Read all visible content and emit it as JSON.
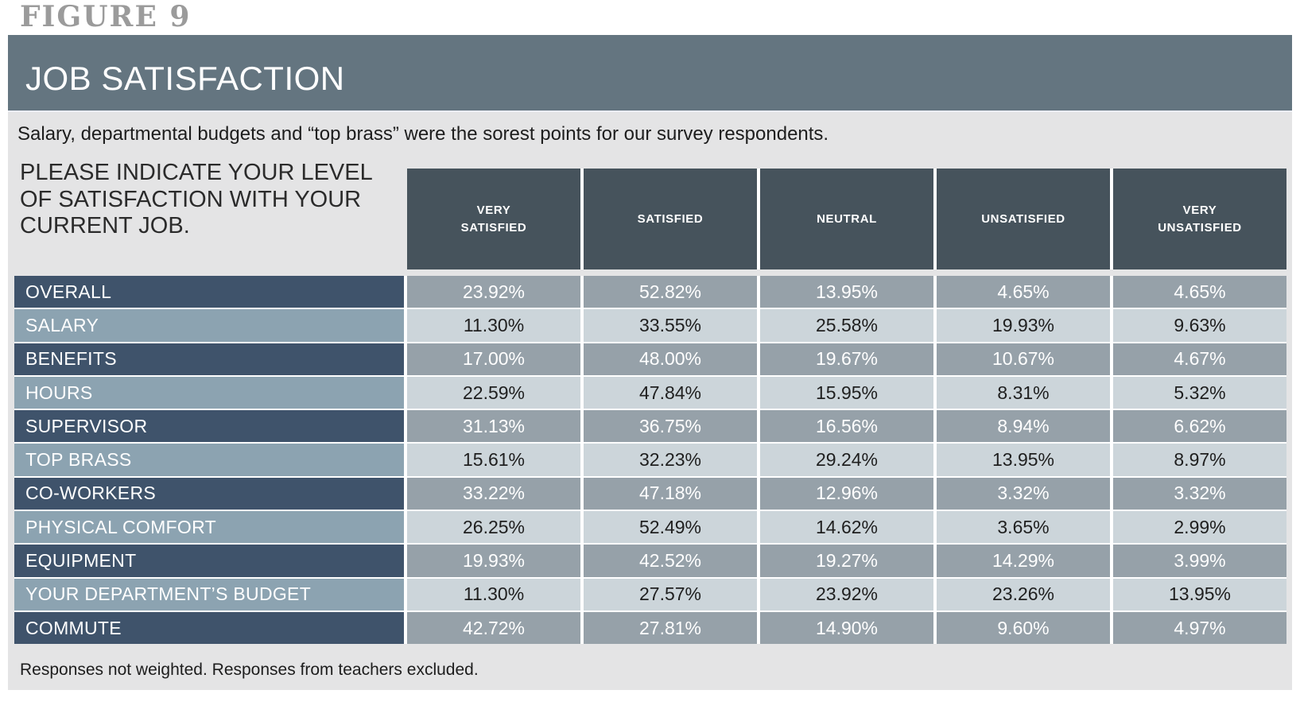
{
  "figure_label": "FIGURE 9",
  "title": "JOB SATISFACTION",
  "subtitle": "Salary, departmental budgets and “top brass” were the sorest points for our survey respondents.",
  "question_lines": [
    "PLEASE INDICATE YOUR LEVEL",
    "OF SATISFACTION WITH YOUR",
    "CURRENT JOB."
  ],
  "footnote": "Responses not weighted. Responses from teachers excluded.",
  "colors": {
    "figure_label": "#9b9b9b",
    "title_bar_bg": "#647580",
    "title_text": "#ffffff",
    "panel_bg": "#e4e4e5",
    "subtitle_text": "#1d1d1d",
    "question_text": "#2b2b2b",
    "colhead_bg": "#46535c",
    "colhead_text": "#ffffff",
    "dark_label_bg": "#3f536b",
    "light_label_bg": "#8ca3b1",
    "label_text": "#ffffff",
    "grey_cell_bg": "#96a1a9",
    "grey_cell_text": "#ffffff",
    "light_cell_bg": "#ccd5da",
    "light_cell_text": "#1f1f1f",
    "footnote_text": "#1d1d1d"
  },
  "chart_data": {
    "type": "table",
    "title": "JOB SATISFACTION",
    "question": "PLEASE INDICATE YOUR LEVEL OF SATISFACTION WITH YOUR CURRENT JOB.",
    "columns": [
      "VERY SATISFIED",
      "SATISFIED",
      "NEUTRAL",
      "UNSATISFIED",
      "VERY UNSATISFIED"
    ],
    "rows": [
      {
        "label": "OVERALL",
        "values": [
          "23.92%",
          "52.82%",
          "13.95%",
          "4.65%",
          "4.65%"
        ]
      },
      {
        "label": "SALARY",
        "values": [
          "11.30%",
          "33.55%",
          "25.58%",
          "19.93%",
          "9.63%"
        ]
      },
      {
        "label": "BENEFITS",
        "values": [
          "17.00%",
          "48.00%",
          "19.67%",
          "10.67%",
          "4.67%"
        ]
      },
      {
        "label": "HOURS",
        "values": [
          "22.59%",
          "47.84%",
          "15.95%",
          "8.31%",
          "5.32%"
        ]
      },
      {
        "label": "SUPERVISOR",
        "values": [
          "31.13%",
          "36.75%",
          "16.56%",
          "8.94%",
          "6.62%"
        ]
      },
      {
        "label": "TOP BRASS",
        "values": [
          "15.61%",
          "32.23%",
          "29.24%",
          "13.95%",
          "8.97%"
        ]
      },
      {
        "label": "CO-WORKERS",
        "values": [
          "33.22%",
          "47.18%",
          "12.96%",
          "3.32%",
          "3.32%"
        ]
      },
      {
        "label": "PHYSICAL COMFORT",
        "values": [
          "26.25%",
          "52.49%",
          "14.62%",
          "3.65%",
          "2.99%"
        ]
      },
      {
        "label": "EQUIPMENT",
        "values": [
          "19.93%",
          "42.52%",
          "19.27%",
          "14.29%",
          "3.99%"
        ]
      },
      {
        "label": "YOUR DEPARTMENT’S BUDGET",
        "values": [
          "11.30%",
          "27.57%",
          "23.92%",
          "23.26%",
          "13.95%"
        ]
      },
      {
        "label": "COMMUTE",
        "values": [
          "42.72%",
          "27.81%",
          "14.90%",
          "9.60%",
          "4.97%"
        ]
      }
    ]
  }
}
